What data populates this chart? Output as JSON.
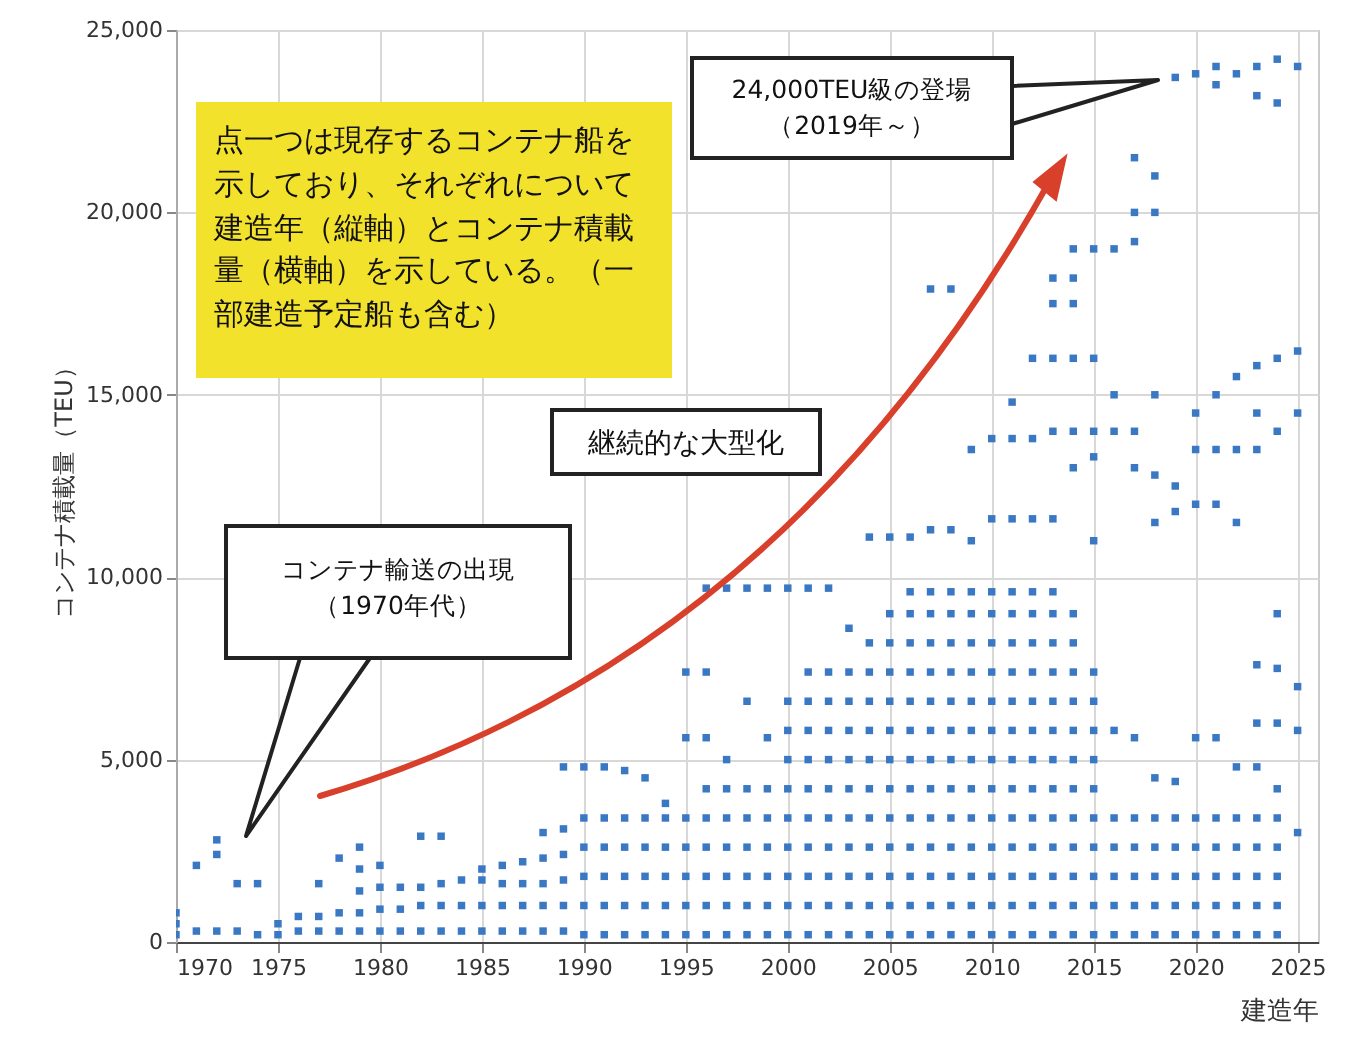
{
  "chart_data": {
    "type": "scatter",
    "xlabel": "建造年",
    "ylabel": "コンテナ積載量（TEU）",
    "xlim": [
      1970,
      2026
    ],
    "ylim": [
      0,
      25000
    ],
    "xticks": [
      1970,
      1975,
      1980,
      1985,
      1990,
      1995,
      2000,
      2005,
      2010,
      2015,
      2020,
      2025
    ],
    "yticks": [
      0,
      {
        "value": 5000,
        "label": "5,000"
      },
      {
        "value": 10000,
        "label": "10,000"
      },
      {
        "value": 15000,
        "label": "15,000"
      },
      {
        "value": 20000,
        "label": "20,000"
      },
      {
        "value": 25000,
        "label": "25,000"
      }
    ],
    "grid": true,
    "marker": "square",
    "annotations": [
      "点一つは現存するコンテナ船を示しており、それぞれについて建造年（縦軸）とコンテナ積載量（横軸）を示している。（一部建造予定船も含む）",
      "継続的な大型化",
      "コンテナ輸送の出現（1970年代）",
      "24,000TEU級の登場（2019年～）"
    ],
    "series": [
      {
        "color": "#3b78c4",
        "x": [
          1970,
          1970,
          1970
        ],
        "values": [
          200,
          500,
          800
        ]
      },
      {
        "color": "#3b78c4",
        "x": [
          1971,
          1971
        ],
        "values": [
          300,
          2100
        ]
      },
      {
        "color": "#3b78c4",
        "x": [
          1972,
          1972,
          1972
        ],
        "values": [
          300,
          2400,
          2800
        ]
      },
      {
        "color": "#3b78c4",
        "x": [
          1973,
          1973
        ],
        "values": [
          300,
          1600
        ]
      },
      {
        "color": "#3b78c4",
        "x": [
          1974,
          1974
        ],
        "values": [
          200,
          1600
        ]
      },
      {
        "color": "#3b78c4",
        "x": [
          1975,
          1975
        ],
        "values": [
          200,
          500
        ]
      },
      {
        "color": "#3b78c4",
        "x": [
          1976,
          1976
        ],
        "values": [
          300,
          700
        ]
      },
      {
        "color": "#3b78c4",
        "x": [
          1977,
          1977,
          1977
        ],
        "values": [
          300,
          700,
          1600
        ]
      },
      {
        "color": "#3b78c4",
        "x": [
          1978,
          1978,
          1978
        ],
        "values": [
          300,
          800,
          2300
        ]
      },
      {
        "color": "#3b78c4",
        "x": [
          1979,
          1979,
          1979,
          1979,
          1979
        ],
        "values": [
          300,
          800,
          1400,
          2000,
          2600
        ]
      },
      {
        "color": "#3b78c4",
        "x": [
          1980,
          1980,
          1980,
          1980
        ],
        "values": [
          300,
          900,
          1500,
          2100
        ]
      },
      {
        "color": "#3b78c4",
        "x": [
          1981,
          1981,
          1981
        ],
        "values": [
          300,
          900,
          1500
        ]
      },
      {
        "color": "#3b78c4",
        "x": [
          1982,
          1982,
          1982,
          1982
        ],
        "values": [
          300,
          1000,
          1500,
          2900
        ]
      },
      {
        "color": "#3b78c4",
        "x": [
          1983,
          1983,
          1983,
          1983
        ],
        "values": [
          300,
          1000,
          1600,
          2900
        ]
      },
      {
        "color": "#3b78c4",
        "x": [
          1984,
          1984,
          1984
        ],
        "values": [
          300,
          1000,
          1700
        ]
      },
      {
        "color": "#3b78c4",
        "x": [
          1985,
          1985,
          1985,
          1985
        ],
        "values": [
          300,
          1000,
          1700,
          2000
        ]
      },
      {
        "color": "#3b78c4",
        "x": [
          1986,
          1986,
          1986,
          1986
        ],
        "values": [
          300,
          1000,
          1600,
          2100
        ]
      },
      {
        "color": "#3b78c4",
        "x": [
          1987,
          1987,
          1987,
          1987
        ],
        "values": [
          300,
          1000,
          1600,
          2200
        ]
      },
      {
        "color": "#3b78c4",
        "x": [
          1988,
          1988,
          1988,
          1988,
          1988
        ],
        "values": [
          300,
          1000,
          1600,
          2300,
          3000
        ]
      },
      {
        "color": "#3b78c4",
        "x": [
          1989,
          1989,
          1989,
          1989,
          1989,
          1989
        ],
        "values": [
          300,
          1000,
          1700,
          2400,
          3100,
          4800
        ]
      },
      {
        "color": "#3b78c4",
        "x": [
          1990,
          1990,
          1990,
          1990,
          1990,
          1990
        ],
        "values": [
          200,
          1000,
          1800,
          2600,
          3400,
          4800
        ]
      },
      {
        "color": "#3b78c4",
        "x": [
          1991,
          1991,
          1991,
          1991,
          1991,
          1991
        ],
        "values": [
          200,
          1000,
          1800,
          2600,
          3400,
          4800
        ]
      },
      {
        "color": "#3b78c4",
        "x": [
          1992,
          1992,
          1992,
          1992,
          1992,
          1992
        ],
        "values": [
          200,
          1000,
          1800,
          2600,
          3400,
          4700
        ]
      },
      {
        "color": "#3b78c4",
        "x": [
          1993,
          1993,
          1993,
          1993,
          1993,
          1993
        ],
        "values": [
          200,
          1000,
          1800,
          2600,
          3400,
          4500
        ]
      },
      {
        "color": "#3b78c4",
        "x": [
          1994,
          1994,
          1994,
          1994,
          1994,
          1994
        ],
        "values": [
          200,
          1000,
          1800,
          2600,
          3400,
          3800
        ]
      },
      {
        "color": "#3b78c4",
        "x": [
          1995,
          1995,
          1995,
          1995,
          1995,
          1995,
          1995
        ],
        "values": [
          200,
          1000,
          1800,
          2600,
          3400,
          5600,
          7400
        ]
      },
      {
        "color": "#3b78c4",
        "x": [
          1996,
          1996,
          1996,
          1996,
          1996,
          1996,
          1996,
          1996,
          1996
        ],
        "values": [
          200,
          1000,
          1800,
          2600,
          3400,
          4200,
          5600,
          7400,
          9700
        ]
      },
      {
        "color": "#3b78c4",
        "x": [
          1997,
          1997,
          1997,
          1997,
          1997,
          1997,
          1997,
          1997
        ],
        "values": [
          200,
          1000,
          1800,
          2600,
          3400,
          4200,
          5000,
          9700
        ]
      },
      {
        "color": "#3b78c4",
        "x": [
          1998,
          1998,
          1998,
          1998,
          1998,
          1998,
          1998,
          1998
        ],
        "values": [
          200,
          1000,
          1800,
          2600,
          3400,
          4200,
          6600,
          9700
        ]
      },
      {
        "color": "#3b78c4",
        "x": [
          1999,
          1999,
          1999,
          1999,
          1999,
          1999,
          1999,
          1999
        ],
        "values": [
          200,
          1000,
          1800,
          2600,
          3400,
          4200,
          5600,
          9700
        ]
      },
      {
        "color": "#3b78c4",
        "x": [
          2000,
          2000,
          2000,
          2000,
          2000,
          2000,
          2000,
          2000,
          2000,
          2000
        ],
        "values": [
          200,
          1000,
          1800,
          2600,
          3400,
          4200,
          5000,
          5800,
          6600,
          9700
        ]
      },
      {
        "color": "#3b78c4",
        "x": [
          2001,
          2001,
          2001,
          2001,
          2001,
          2001,
          2001,
          2001,
          2001,
          2001,
          2001
        ],
        "values": [
          200,
          1000,
          1800,
          2600,
          3400,
          4200,
          5000,
          5800,
          6600,
          7400,
          9700
        ]
      },
      {
        "color": "#3b78c4",
        "x": [
          2002,
          2002,
          2002,
          2002,
          2002,
          2002,
          2002,
          2002,
          2002,
          2002,
          2002
        ],
        "values": [
          200,
          1000,
          1800,
          2600,
          3400,
          4200,
          5000,
          5800,
          6600,
          7400,
          9700
        ]
      },
      {
        "color": "#3b78c4",
        "x": [
          2003,
          2003,
          2003,
          2003,
          2003,
          2003,
          2003,
          2003,
          2003,
          2003,
          2003
        ],
        "values": [
          200,
          1000,
          1800,
          2600,
          3400,
          4200,
          5000,
          5800,
          6600,
          7400,
          8600
        ]
      },
      {
        "color": "#3b78c4",
        "x": [
          2004,
          2004,
          2004,
          2004,
          2004,
          2004,
          2004,
          2004,
          2004,
          2004,
          2004,
          2004
        ],
        "values": [
          200,
          1000,
          1800,
          2600,
          3400,
          4200,
          5000,
          5800,
          6600,
          7400,
          8200,
          11100
        ]
      },
      {
        "color": "#3b78c4",
        "x": [
          2005,
          2005,
          2005,
          2005,
          2005,
          2005,
          2005,
          2005,
          2005,
          2005,
          2005,
          2005,
          2005
        ],
        "values": [
          200,
          1000,
          1800,
          2600,
          3400,
          4200,
          5000,
          5800,
          6600,
          7400,
          8200,
          9000,
          11100
        ]
      },
      {
        "color": "#3b78c4",
        "x": [
          2006,
          2006,
          2006,
          2006,
          2006,
          2006,
          2006,
          2006,
          2006,
          2006,
          2006,
          2006,
          2006,
          2006
        ],
        "values": [
          200,
          1000,
          1800,
          2600,
          3400,
          4200,
          5000,
          5800,
          6600,
          7400,
          8200,
          9000,
          9600,
          11100
        ]
      },
      {
        "color": "#3b78c4",
        "x": [
          2007,
          2007,
          2007,
          2007,
          2007,
          2007,
          2007,
          2007,
          2007,
          2007,
          2007,
          2007,
          2007,
          2007,
          2007
        ],
        "values": [
          200,
          1000,
          1800,
          2600,
          3400,
          4200,
          5000,
          5800,
          6600,
          7400,
          8200,
          9000,
          9600,
          11300,
          17900
        ]
      },
      {
        "color": "#3b78c4",
        "x": [
          2008,
          2008,
          2008,
          2008,
          2008,
          2008,
          2008,
          2008,
          2008,
          2008,
          2008,
          2008,
          2008,
          2008,
          2008
        ],
        "values": [
          200,
          1000,
          1800,
          2600,
          3400,
          4200,
          5000,
          5800,
          6600,
          7400,
          8200,
          9000,
          9600,
          11300,
          17900
        ]
      },
      {
        "color": "#3b78c4",
        "x": [
          2009,
          2009,
          2009,
          2009,
          2009,
          2009,
          2009,
          2009,
          2009,
          2009,
          2009,
          2009,
          2009,
          2009,
          2009
        ],
        "values": [
          200,
          1000,
          1800,
          2600,
          3400,
          4200,
          5000,
          5800,
          6600,
          7400,
          8200,
          9000,
          9600,
          11000,
          13500
        ]
      },
      {
        "color": "#3b78c4",
        "x": [
          2010,
          2010,
          2010,
          2010,
          2010,
          2010,
          2010,
          2010,
          2010,
          2010,
          2010,
          2010,
          2010,
          2010,
          2010
        ],
        "values": [
          200,
          1000,
          1800,
          2600,
          3400,
          4200,
          5000,
          5800,
          6600,
          7400,
          8200,
          9000,
          9600,
          11600,
          13800
        ]
      },
      {
        "color": "#3b78c4",
        "x": [
          2011,
          2011,
          2011,
          2011,
          2011,
          2011,
          2011,
          2011,
          2011,
          2011,
          2011,
          2011,
          2011,
          2011,
          2011,
          2011
        ],
        "values": [
          200,
          1000,
          1800,
          2600,
          3400,
          4200,
          5000,
          5800,
          6600,
          7400,
          8200,
          9000,
          9600,
          11600,
          13800,
          14800
        ]
      },
      {
        "color": "#3b78c4",
        "x": [
          2012,
          2012,
          2012,
          2012,
          2012,
          2012,
          2012,
          2012,
          2012,
          2012,
          2012,
          2012,
          2012,
          2012,
          2012,
          2012
        ],
        "values": [
          200,
          1000,
          1800,
          2600,
          3400,
          4200,
          5000,
          5800,
          6600,
          7400,
          8200,
          9000,
          9600,
          11600,
          13800,
          16000
        ]
      },
      {
        "color": "#3b78c4",
        "x": [
          2013,
          2013,
          2013,
          2013,
          2013,
          2013,
          2013,
          2013,
          2013,
          2013,
          2013,
          2013,
          2013,
          2013,
          2013,
          2013,
          2013,
          2013
        ],
        "values": [
          200,
          1000,
          1800,
          2600,
          3400,
          4200,
          5000,
          5800,
          6600,
          7400,
          8200,
          9000,
          9600,
          11600,
          14000,
          16000,
          17500,
          18200
        ]
      },
      {
        "color": "#3b78c4",
        "x": [
          2014,
          2014,
          2014,
          2014,
          2014,
          2014,
          2014,
          2014,
          2014,
          2014,
          2014,
          2014,
          2014,
          2014,
          2014,
          2014,
          2014,
          2014
        ],
        "values": [
          200,
          1000,
          1800,
          2600,
          3400,
          4200,
          5000,
          5800,
          6600,
          7400,
          8200,
          9000,
          13000,
          14000,
          16000,
          17500,
          18200,
          19000
        ]
      },
      {
        "color": "#3b78c4",
        "x": [
          2015,
          2015,
          2015,
          2015,
          2015,
          2015,
          2015,
          2015,
          2015,
          2015,
          2015,
          2015,
          2015,
          2015,
          2015
        ],
        "values": [
          200,
          1000,
          1800,
          2600,
          3400,
          4200,
          5000,
          5800,
          6600,
          7400,
          11000,
          13300,
          14000,
          16000,
          19000
        ]
      },
      {
        "color": "#3b78c4",
        "x": [
          2016,
          2016,
          2016,
          2016,
          2016,
          2016,
          2016,
          2016,
          2016
        ],
        "values": [
          200,
          1000,
          1800,
          2600,
          3400,
          5800,
          14000,
          15000,
          19000
        ]
      },
      {
        "color": "#3b78c4",
        "x": [
          2017,
          2017,
          2017,
          2017,
          2017,
          2017,
          2017,
          2017,
          2017,
          2017,
          2017
        ],
        "values": [
          200,
          1000,
          1800,
          2600,
          3400,
          5600,
          13000,
          14000,
          19200,
          20000,
          21500
        ]
      },
      {
        "color": "#3b78c4",
        "x": [
          2018,
          2018,
          2018,
          2018,
          2018,
          2018,
          2018,
          2018,
          2018,
          2018,
          2018
        ],
        "values": [
          200,
          1000,
          1800,
          2600,
          3400,
          4500,
          11500,
          12800,
          15000,
          20000,
          21000
        ]
      },
      {
        "color": "#3b78c4",
        "x": [
          2019,
          2019,
          2019,
          2019,
          2019,
          2019,
          2019,
          2019,
          2019
        ],
        "values": [
          200,
          1000,
          1800,
          2600,
          3400,
          4400,
          11800,
          12500,
          23700
        ]
      },
      {
        "color": "#3b78c4",
        "x": [
          2020,
          2020,
          2020,
          2020,
          2020,
          2020,
          2020,
          2020,
          2020,
          2020
        ],
        "values": [
          200,
          1000,
          1800,
          2600,
          3400,
          5600,
          12000,
          13500,
          14500,
          23800
        ]
      },
      {
        "color": "#3b78c4",
        "x": [
          2021,
          2021,
          2021,
          2021,
          2021,
          2021,
          2021,
          2021,
          2021,
          2021,
          2021
        ],
        "values": [
          200,
          1000,
          1800,
          2600,
          3400,
          5600,
          12000,
          13500,
          15000,
          23500,
          24000
        ]
      },
      {
        "color": "#3b78c4",
        "x": [
          2022,
          2022,
          2022,
          2022,
          2022,
          2022,
          2022,
          2022,
          2022,
          2022
        ],
        "values": [
          200,
          1000,
          1800,
          2600,
          3400,
          4800,
          11500,
          13500,
          15500,
          23800
        ]
      },
      {
        "color": "#3b78c4",
        "x": [
          2023,
          2023,
          2023,
          2023,
          2023,
          2023,
          2023,
          2023,
          2023,
          2023,
          2023,
          2023,
          2023
        ],
        "values": [
          200,
          1000,
          1800,
          2600,
          3400,
          4800,
          6000,
          7600,
          13500,
          14500,
          15800,
          23200,
          24000
        ]
      },
      {
        "color": "#3b78c4",
        "x": [
          2024,
          2024,
          2024,
          2024,
          2024,
          2024,
          2024,
          2024,
          2024,
          2024,
          2024,
          2024,
          2024
        ],
        "values": [
          200,
          1000,
          1800,
          2600,
          3400,
          4200,
          6000,
          7500,
          9000,
          14000,
          16000,
          23000,
          24200
        ]
      },
      {
        "color": "#3b78c4",
        "x": [
          2025,
          2025,
          2025,
          2025,
          2025,
          2025
        ],
        "values": [
          3000,
          5800,
          7000,
          14500,
          16200,
          24000
        ]
      }
    ]
  }
}
